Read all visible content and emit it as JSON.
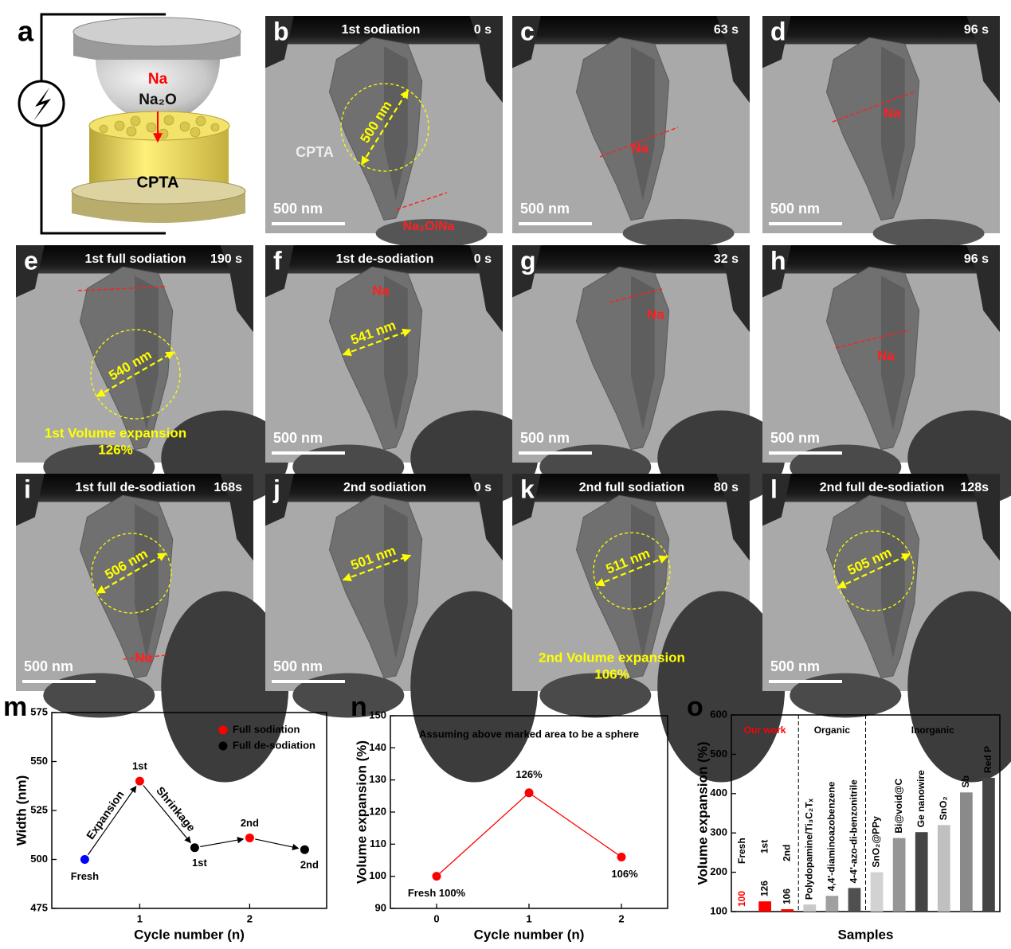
{
  "schematic": {
    "letter": "a",
    "labels": [
      "Na",
      "Na₂O",
      "CPTA"
    ]
  },
  "panels": [
    {
      "letter": "b",
      "title": "1st  sodiation",
      "time": "0 s",
      "measure": "500 nm",
      "notes": [
        "CPTA",
        "Na₂O/Na"
      ],
      "scale": "500 nm"
    },
    {
      "letter": "c",
      "time": "63 s",
      "notes": [
        "Na"
      ],
      "scale": "500 nm"
    },
    {
      "letter": "d",
      "time": "96 s",
      "notes": [
        "Na"
      ],
      "scale": "500 nm"
    },
    {
      "letter": "e",
      "title": "1st  full sodiation",
      "time": "190 s",
      "measure": "540 nm",
      "notes": [
        "1st Volume expansion",
        "126%"
      ]
    },
    {
      "letter": "f",
      "title": "1st de-sodiation",
      "time": "0 s",
      "measure": "541 nm",
      "notes": [
        "Na"
      ],
      "scale": "500 nm"
    },
    {
      "letter": "g",
      "time": "32 s",
      "notes": [
        "Na"
      ],
      "scale": "500 nm"
    },
    {
      "letter": "h",
      "time": "96 s",
      "notes": [
        "Na"
      ],
      "scale": "500 nm"
    },
    {
      "letter": "i",
      "title": "1st full de-sodiation",
      "time": "168s",
      "measure": "506 nm",
      "notes": [
        "Na"
      ],
      "scale": "500 nm"
    },
    {
      "letter": "j",
      "title": "2nd sodiation",
      "time": "0 s",
      "measure": "501 nm",
      "scale": "500 nm"
    },
    {
      "letter": "k",
      "title": "2nd full sodiation",
      "time": "80 s",
      "measure": "511 nm",
      "notes": [
        "2nd Volume expansion",
        "106%"
      ]
    },
    {
      "letter": "l",
      "title": "2nd full de-sodiation",
      "time": "128s",
      "measure": "505 nm",
      "scale": "500 nm"
    }
  ],
  "chart_data": [
    {
      "letter": "m",
      "type": "scatter",
      "xlabel": "Cycle number (n)",
      "ylabel": "Width (nm)",
      "xlim": [
        0.2,
        2.7
      ],
      "xticks": [
        1,
        2
      ],
      "ylim": [
        475,
        575
      ],
      "yticks": [
        475,
        500,
        525,
        550,
        575
      ],
      "fresh": {
        "label": "Fresh",
        "x": 0.5,
        "value": 500,
        "color": "#0000ff"
      },
      "series": [
        {
          "name": "Full sodiation",
          "color": "#ff0000",
          "x": [
            1,
            2
          ],
          "values": [
            540,
            511
          ],
          "point_labels": [
            "1st",
            "2nd"
          ]
        },
        {
          "name": "Full de-sodiation",
          "color": "#000000",
          "x": [
            1.5,
            2.5
          ],
          "values": [
            506,
            505
          ],
          "point_labels": [
            "1st",
            "2nd"
          ]
        }
      ],
      "annotations": [
        "Expansion",
        "Shrinkage"
      ],
      "legend": "upper right"
    },
    {
      "letter": "n",
      "type": "line",
      "title": "Assuming above marked area to be a sphere",
      "xlabel": "Cycle number (n)",
      "ylabel": "Volume expansion (%)",
      "x": [
        0,
        1,
        2
      ],
      "xlim": [
        -0.5,
        2.5
      ],
      "xticks": [
        0,
        1,
        2
      ],
      "ylim": [
        90,
        150
      ],
      "yticks": [
        90,
        100,
        110,
        120,
        130,
        140,
        150
      ],
      "series": [
        {
          "color": "#ff0000",
          "values": [
            100,
            126,
            106
          ],
          "value_labels": [
            "Fresh 100%",
            "126%",
            "106%"
          ]
        }
      ]
    },
    {
      "letter": "o",
      "type": "bar",
      "xlabel": "Samples",
      "ylabel": "Volume expansion (%)",
      "ylim": [
        100,
        600
      ],
      "yticks": [
        100,
        200,
        300,
        400,
        500,
        600
      ],
      "categories": [
        "Fresh",
        "1st",
        "2nd",
        "Polydopamine/Ti₃C₂Tₓ",
        "4,4'-diaminoazobenzene",
        "4-4'-azo-di-benzonitrile",
        "SnO₂@PPy",
        "Bi@void@C",
        "Ge nanowire",
        "SnO₂",
        "Sb",
        "Red P"
      ],
      "values": [
        100,
        126,
        106,
        118,
        140,
        160,
        200,
        287,
        302,
        320,
        403,
        440
      ],
      "colors": [
        "#ff0000",
        "#ff0000",
        "#ff0000",
        "#c8c8c8",
        "#a0a0a0",
        "#505050",
        "#d2d2d2",
        "#969696",
        "#444444",
        "#c0c0c0",
        "#8a8a8a",
        "#444444"
      ],
      "groups": [
        {
          "label": "Our work",
          "size": 3,
          "color": "#ff0000"
        },
        {
          "label": "Organic",
          "size": 3,
          "color": "#000000"
        },
        {
          "label": "Inorganic",
          "size": 6,
          "color": "#000000"
        }
      ]
    }
  ]
}
